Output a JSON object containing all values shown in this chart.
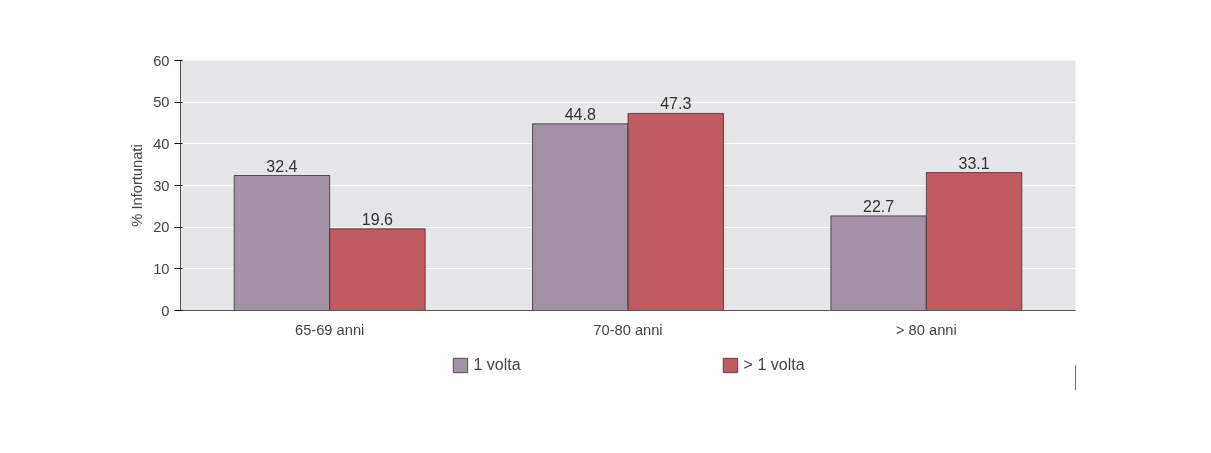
{
  "chart_data": {
    "type": "bar",
    "ylabel": "% Infortunati",
    "categories": [
      "65-69 anni",
      "70-80 anni",
      "> 80 anni"
    ],
    "series": [
      {
        "name": "1 volta",
        "color": "#a391a5",
        "values": [
          32.4,
          44.8,
          22.7
        ]
      },
      {
        "name": "> 1 volta",
        "color": "#c05a63",
        "values": [
          19.6,
          47.3,
          33.1
        ]
      }
    ],
    "ylim": [
      0,
      60
    ],
    "yticks": [
      0,
      10,
      20,
      30,
      40,
      50,
      60
    ],
    "grid": "y",
    "legend": "bottom",
    "data_labels": true
  }
}
